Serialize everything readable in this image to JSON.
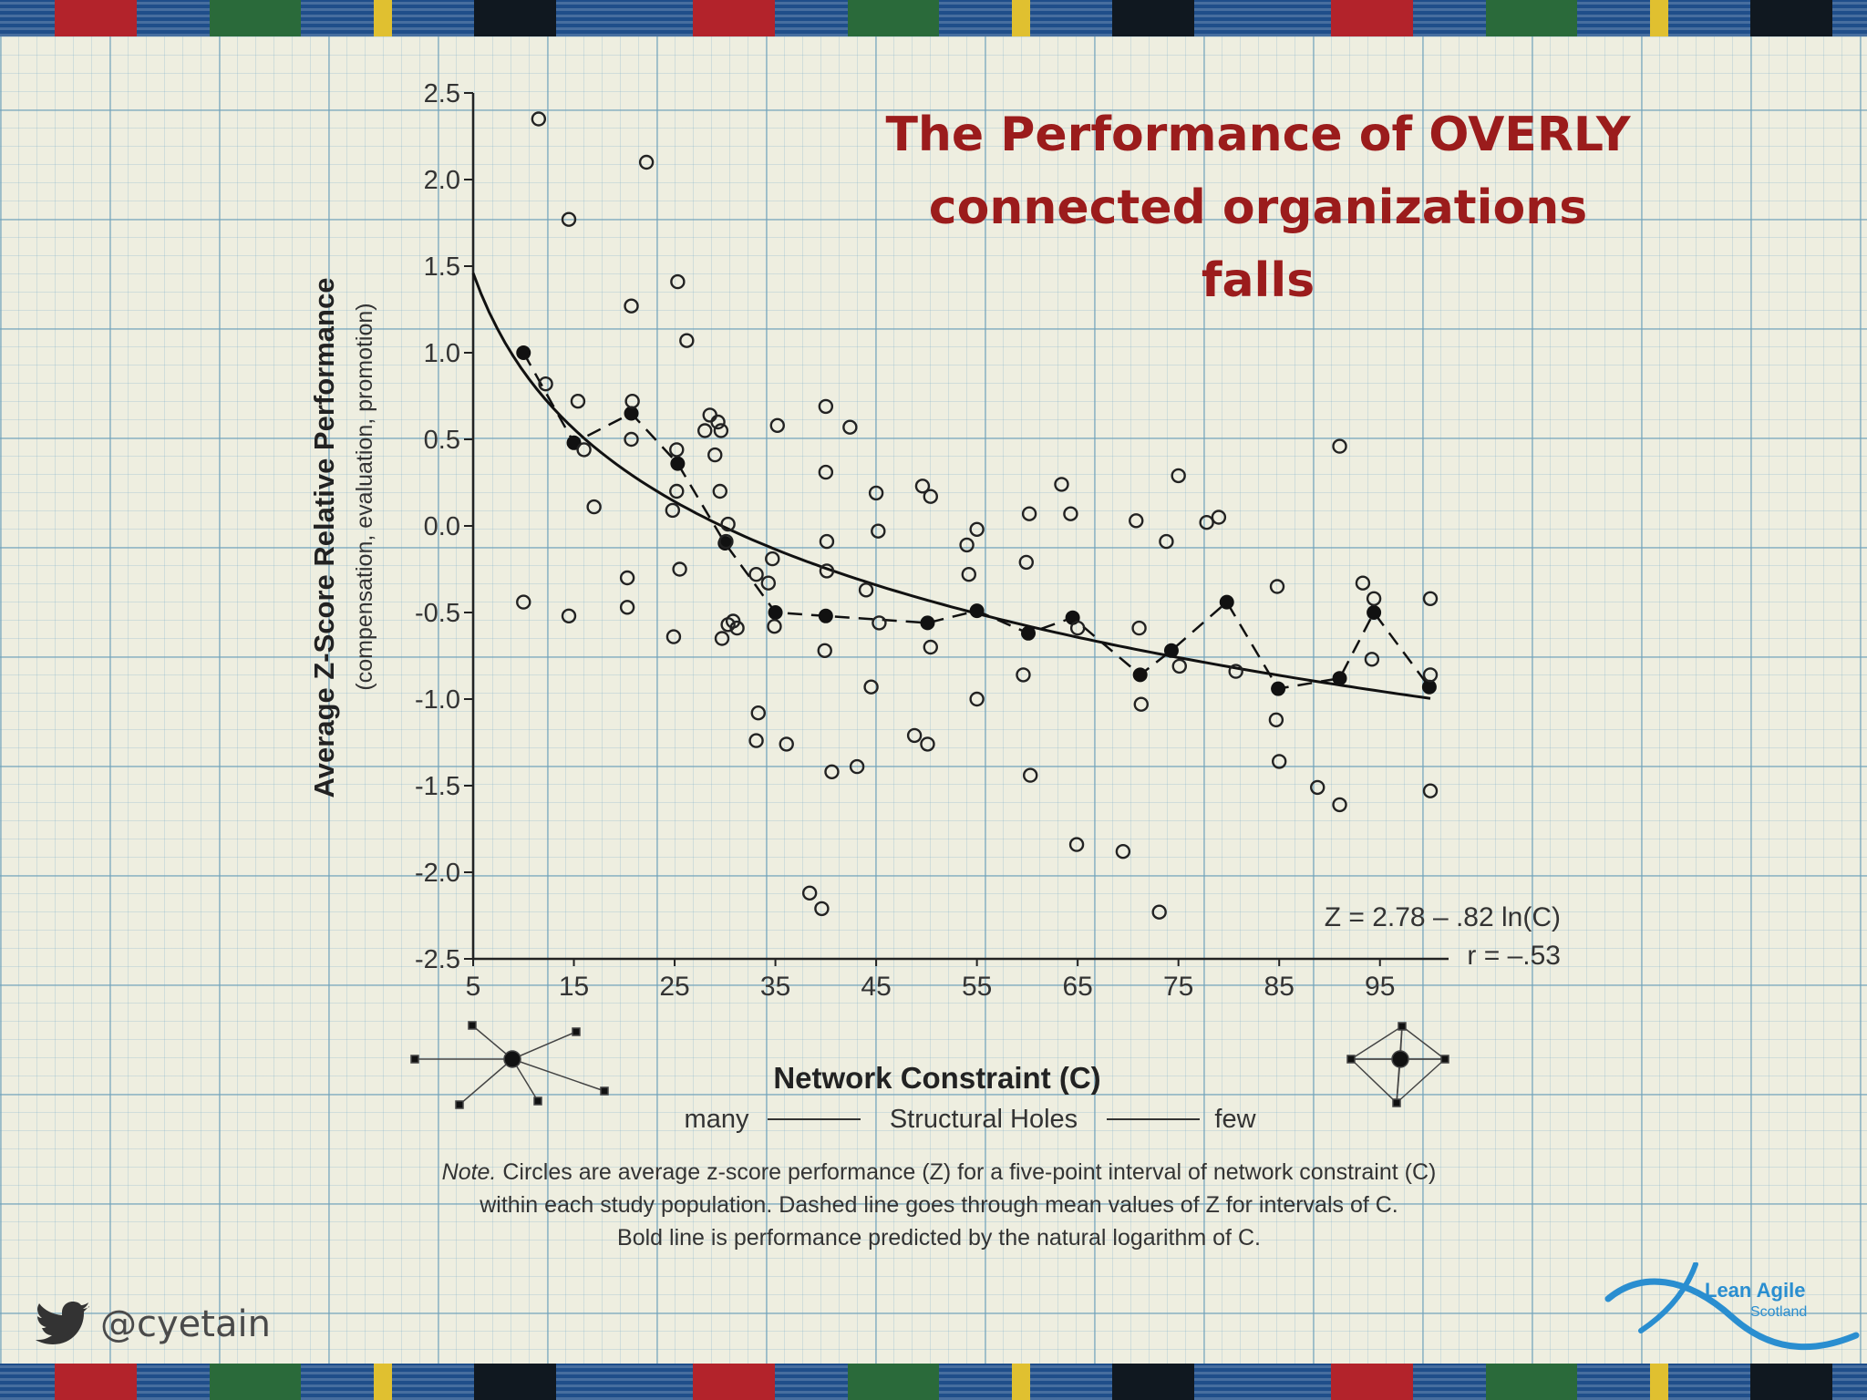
{
  "slide_title_line1": "The Performance of OVERLY",
  "slide_title_line2": "connected organizations falls",
  "twitter_handle": "@cyetain",
  "logo_line1": "Lean Agile",
  "logo_line2": "Scotland",
  "colors": {
    "title": "#9b1c1c",
    "grid": "#6ea0b9",
    "ink": "#222222",
    "logo": "#2a8ed0"
  },
  "chart_data": {
    "type": "scatter",
    "ylabel": "Average Z-Score Relative Performance",
    "ylabel_sub": "(compensation, evaluation, promotion)",
    "xlabel": "Network Constraint (C)",
    "xlabel_sub_left": "many",
    "xlabel_sub_mid": "Structural Holes",
    "xlabel_sub_right": "few",
    "xlim": [
      5,
      100
    ],
    "ylim": [
      -2.5,
      2.5
    ],
    "x_ticks": [
      "5",
      "15",
      "25",
      "35",
      "45",
      "55",
      "65",
      "75",
      "85",
      "95"
    ],
    "x_tick_values": [
      5,
      15,
      25,
      35,
      45,
      55,
      65,
      75,
      85,
      95
    ],
    "y_ticks": [
      "2.5",
      "2.0",
      "1.5",
      "1.0",
      "0.5",
      "0.0",
      "-0.5",
      "-1.0",
      "-1.5",
      "-2.0",
      "-2.5"
    ],
    "y_tick_values": [
      2.5,
      2.0,
      1.5,
      1.0,
      0.5,
      0.0,
      -0.5,
      -1.0,
      -1.5,
      -2.0,
      -2.5
    ],
    "equation": "Z = 2.78 – .82 ln(C)",
    "r_value": "r = –.53",
    "note_label": "Note.",
    "note_line1": "Circles are average z-score performance (Z) for a five-point interval of network constraint (C)",
    "note_line2": "within each study population.  Dashed line goes through mean values of Z for intervals of C.",
    "note_line3": "Bold line is performance predicted by the natural logarithm of C.",
    "fit": {
      "intercept": 2.78,
      "slope": -0.82,
      "x_range": [
        5,
        100
      ]
    },
    "open_points": [
      [
        11.5,
        2.35
      ],
      [
        14.5,
        1.77
      ],
      [
        22.2,
        2.1
      ],
      [
        25.3,
        1.41
      ],
      [
        20.7,
        1.27
      ],
      [
        26.2,
        1.07
      ],
      [
        12.2,
        0.82
      ],
      [
        15.4,
        0.72
      ],
      [
        16.0,
        0.44
      ],
      [
        17.0,
        0.11
      ],
      [
        20.8,
        0.72
      ],
      [
        20.7,
        0.5
      ],
      [
        25.2,
        0.44
      ],
      [
        25.2,
        0.2
      ],
      [
        24.8,
        0.09
      ],
      [
        10.0,
        -0.44
      ],
      [
        14.5,
        -0.52
      ],
      [
        20.3,
        -0.3
      ],
      [
        20.3,
        -0.47
      ],
      [
        25.5,
        -0.25
      ],
      [
        24.9,
        -0.64
      ],
      [
        28.5,
        0.64
      ],
      [
        29.3,
        0.6
      ],
      [
        28.0,
        0.55
      ],
      [
        29.6,
        0.55
      ],
      [
        29.0,
        0.41
      ],
      [
        29.5,
        0.2
      ],
      [
        30.3,
        0.01
      ],
      [
        30.1,
        -0.09
      ],
      [
        30.8,
        -0.55
      ],
      [
        30.3,
        -0.57
      ],
      [
        29.7,
        -0.65
      ],
      [
        31.2,
        -0.59
      ],
      [
        33.1,
        -0.28
      ],
      [
        34.3,
        -0.33
      ],
      [
        34.7,
        -0.19
      ],
      [
        34.9,
        -0.58
      ],
      [
        35.2,
        0.58
      ],
      [
        33.3,
        -1.08
      ],
      [
        33.1,
        -1.24
      ],
      [
        36.1,
        -1.26
      ],
      [
        40.0,
        0.69
      ],
      [
        40.0,
        0.31
      ],
      [
        40.1,
        -0.09
      ],
      [
        40.1,
        -0.26
      ],
      [
        39.9,
        -0.72
      ],
      [
        42.4,
        0.57
      ],
      [
        44.0,
        -0.37
      ],
      [
        45.3,
        -0.56
      ],
      [
        45.0,
        0.19
      ],
      [
        45.2,
        -0.03
      ],
      [
        44.5,
        -0.93
      ],
      [
        40.6,
        -1.42
      ],
      [
        43.1,
        -1.39
      ],
      [
        48.8,
        -1.21
      ],
      [
        50.1,
        -1.26
      ],
      [
        38.4,
        -2.12
      ],
      [
        39.6,
        -2.21
      ],
      [
        49.6,
        0.23
      ],
      [
        50.4,
        0.17
      ],
      [
        50.4,
        -0.7
      ],
      [
        54.0,
        -0.11
      ],
      [
        55.0,
        -0.02
      ],
      [
        54.2,
        -0.28
      ],
      [
        55.0,
        -1.0
      ],
      [
        60.2,
        0.07
      ],
      [
        59.9,
        -0.21
      ],
      [
        59.6,
        -0.86
      ],
      [
        60.3,
        -1.44
      ],
      [
        63.4,
        0.24
      ],
      [
        64.3,
        0.07
      ],
      [
        65.0,
        -0.59
      ],
      [
        64.9,
        -1.84
      ],
      [
        69.5,
        -1.88
      ],
      [
        70.8,
        0.03
      ],
      [
        71.1,
        -0.59
      ],
      [
        71.3,
        -1.03
      ],
      [
        73.1,
        -2.23
      ],
      [
        73.8,
        -0.09
      ],
      [
        75.0,
        0.29
      ],
      [
        75.1,
        -0.81
      ],
      [
        77.8,
        0.02
      ],
      [
        79.0,
        0.05
      ],
      [
        80.7,
        -0.84
      ],
      [
        84.8,
        -0.35
      ],
      [
        84.7,
        -1.12
      ],
      [
        85.0,
        -1.36
      ],
      [
        88.8,
        -1.51
      ],
      [
        91.0,
        -1.61
      ],
      [
        91.0,
        0.46
      ],
      [
        93.3,
        -0.33
      ],
      [
        94.4,
        -0.42
      ],
      [
        94.2,
        -0.77
      ],
      [
        100.0,
        -0.42
      ],
      [
        100.0,
        -0.86
      ],
      [
        100.0,
        -1.53
      ]
    ],
    "mean_points": [
      [
        10.0,
        1.0
      ],
      [
        15.0,
        0.48
      ],
      [
        20.7,
        0.65
      ],
      [
        25.3,
        0.36
      ],
      [
        30.0,
        -0.1
      ],
      [
        35.0,
        -0.5
      ],
      [
        40.0,
        -0.52
      ],
      [
        50.1,
        -0.56
      ],
      [
        55.0,
        -0.49
      ],
      [
        60.1,
        -0.62
      ],
      [
        64.5,
        -0.53
      ],
      [
        71.2,
        -0.86
      ],
      [
        74.3,
        -0.72
      ],
      [
        79.8,
        -0.44
      ],
      [
        84.9,
        -0.94
      ],
      [
        91.0,
        -0.88
      ],
      [
        94.4,
        -0.5
      ],
      [
        99.9,
        -0.93
      ]
    ]
  }
}
